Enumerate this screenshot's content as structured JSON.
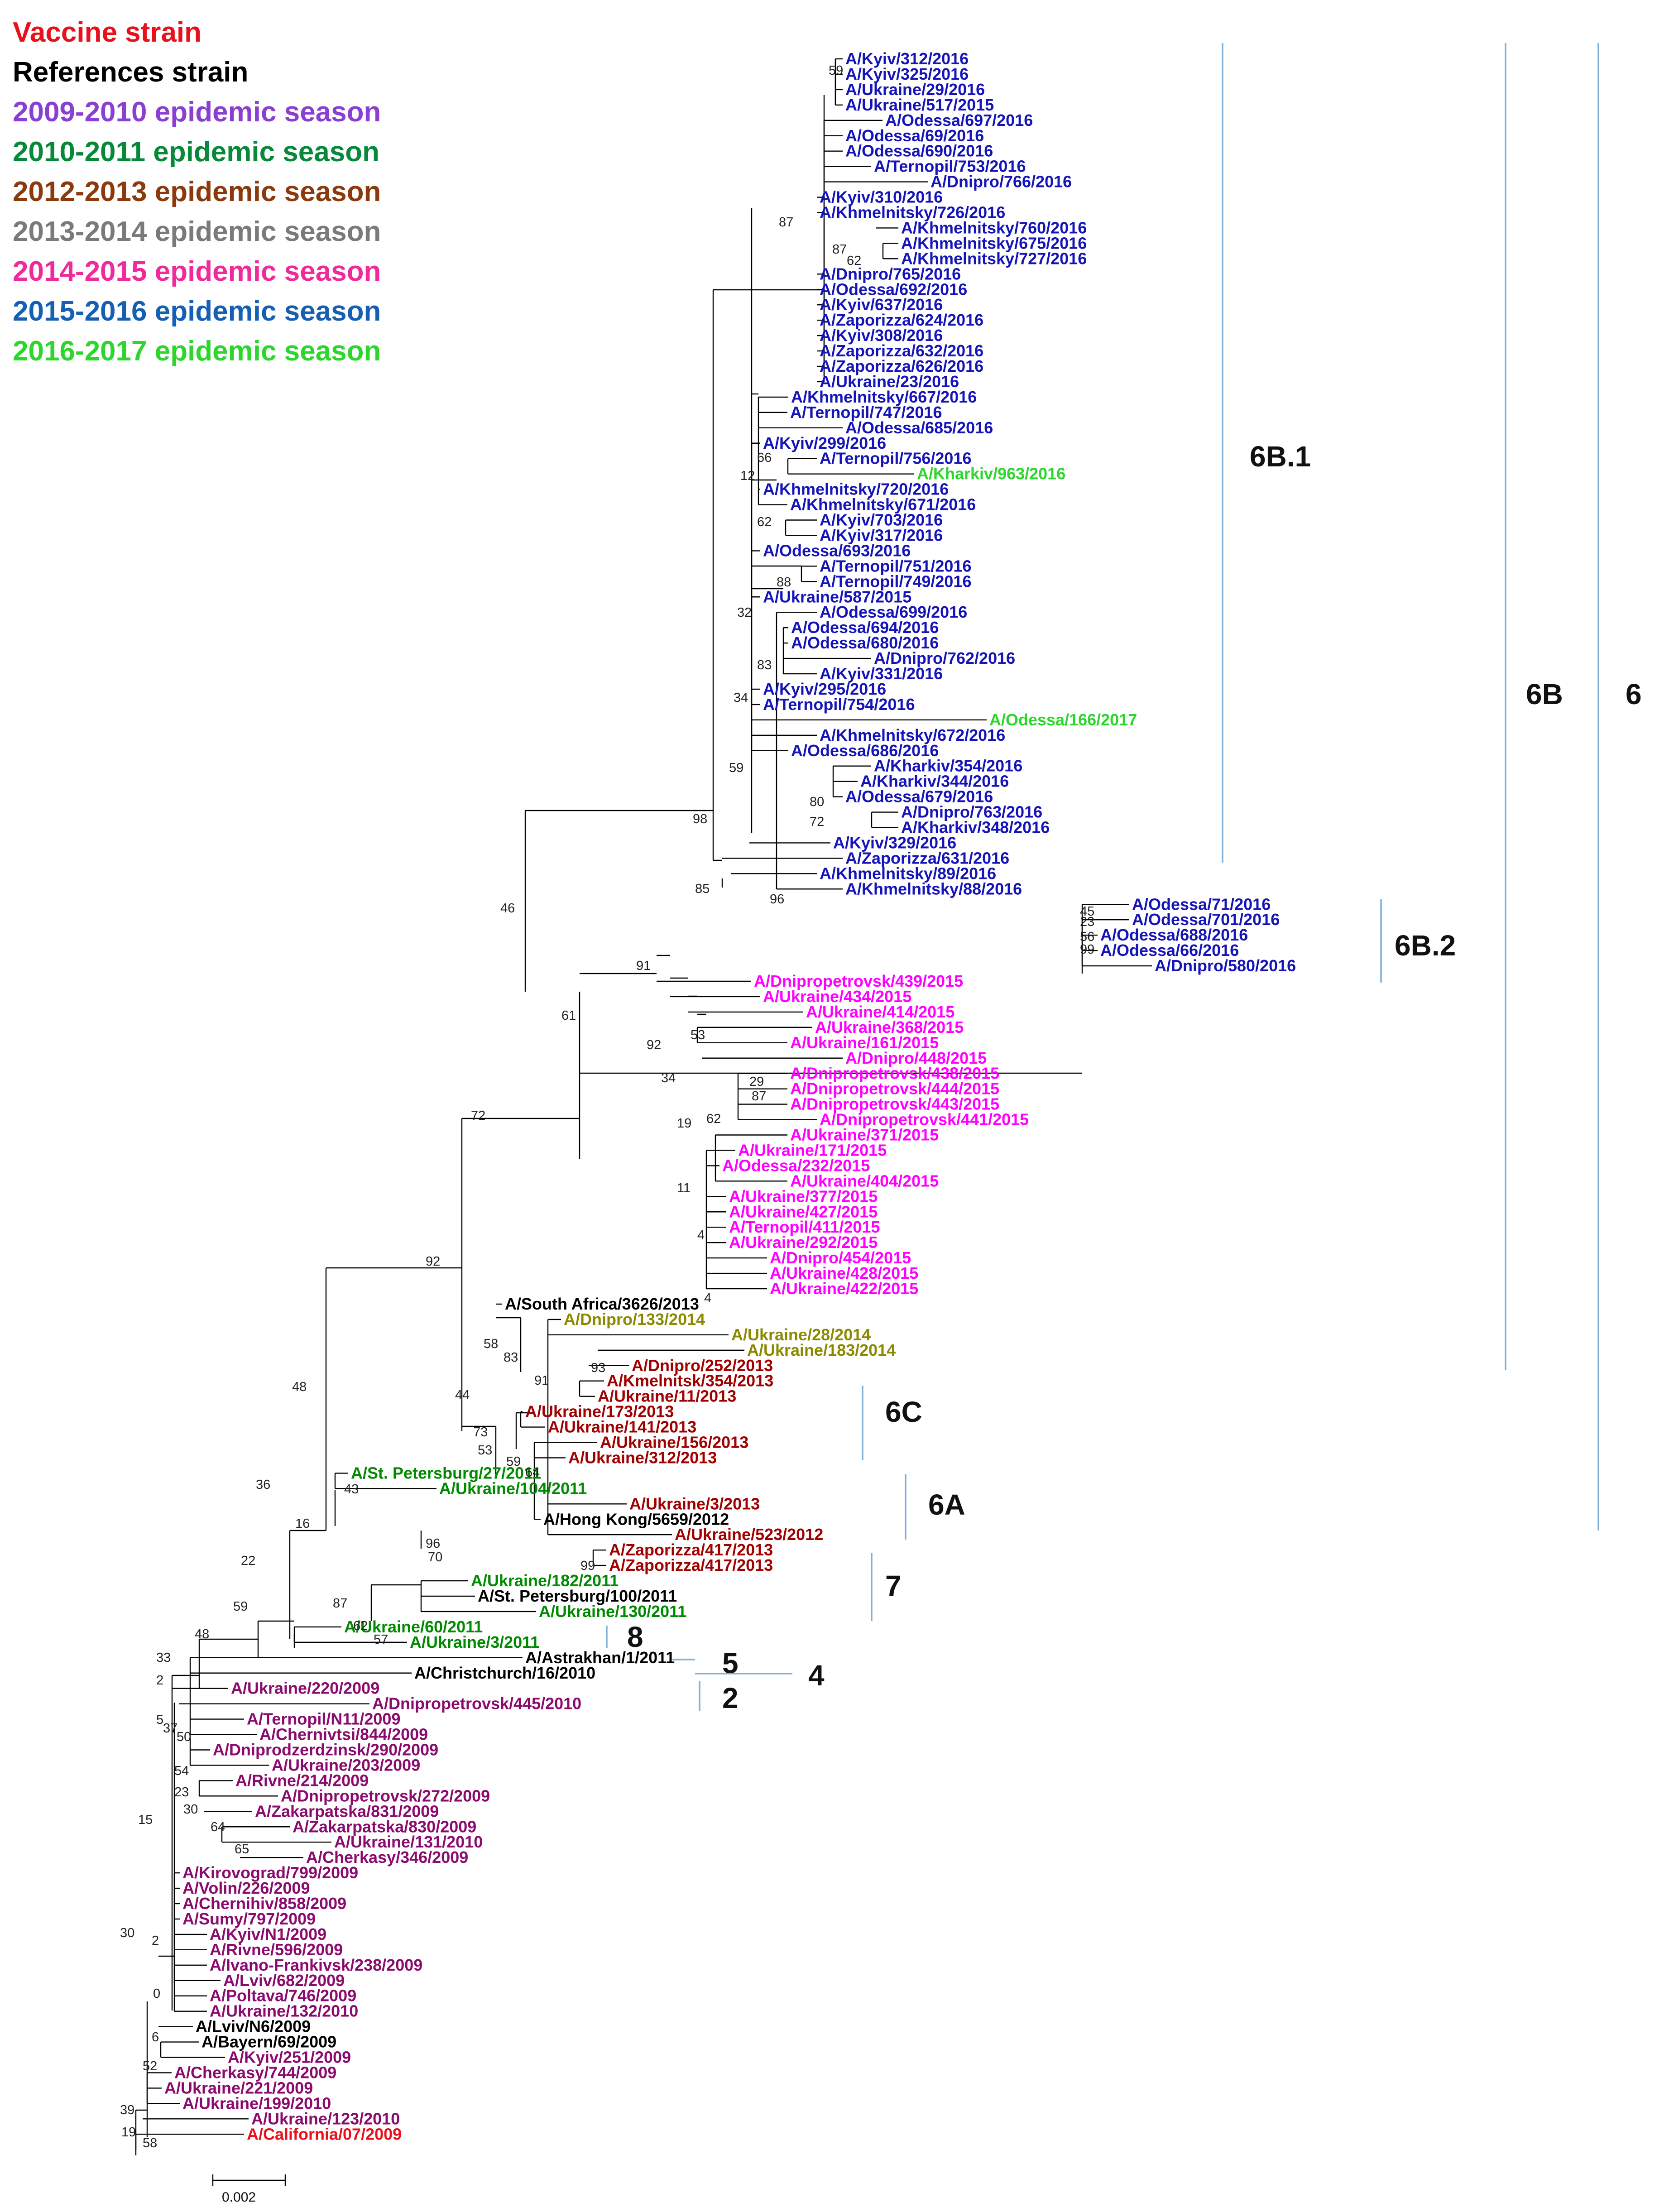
{
  "colors": {
    "vaccine": "#e8101a",
    "reference": "#000000",
    "s0910": "#8a3fd1",
    "s1011": "#07893a",
    "s1213": "#8b3a0e",
    "s1314": "#7a7a7a",
    "s1415": "#ee2a9c",
    "s1516": "#1660b4",
    "s1617": "#2cd62c",
    "g2010": "#1414b8",
    "g2015": "#ff00ff",
    "g2014": "#8a8a00",
    "g2013": "#a00000",
    "g2011": "#008a00",
    "g2009": "#8b0a6e",
    "bar": "#7fb0d8"
  },
  "legend": [
    {
      "text": "Vaccine strain",
      "color": "vaccine"
    },
    {
      "text": "References strain",
      "color": "reference"
    },
    {
      "text": "2009-2010 epidemic season",
      "color": "s0910"
    },
    {
      "text": "2010-2011 epidemic season",
      "color": "s1011"
    },
    {
      "text": "2012-2013 epidemic season",
      "color": "s1213"
    },
    {
      "text": "2013-2014 epidemic season",
      "color": "s1314"
    },
    {
      "text": "2014-2015 epidemic season",
      "color": "s1415"
    },
    {
      "text": "2015-2016 epidemic season",
      "color": "s1516"
    },
    {
      "text": "2016-2017 epidemic season",
      "color": "s1617"
    }
  ],
  "leaves": [
    {
      "label": "A/Kyiv/312/2016",
      "group": "g2010"
    },
    {
      "label": "A/Kyiv/325/2016",
      "group": "g2010"
    },
    {
      "label": "A/Ukraine/29/2016",
      "group": "g2010"
    },
    {
      "label": "A/Ukraine/517/2015",
      "group": "g2010"
    },
    {
      "label": "A/Odessa/697/2016",
      "group": "g2010"
    },
    {
      "label": "A/Odessa/69/2016",
      "group": "g2010"
    },
    {
      "label": "A/Odessa/690/2016",
      "group": "g2010"
    },
    {
      "label": "A/Ternopil/753/2016",
      "group": "g2010"
    },
    {
      "label": "A/Dnipro/766/2016",
      "group": "g2010"
    },
    {
      "label": "A/Kyiv/310/2016",
      "group": "g2010"
    },
    {
      "label": "A/Khmelnitsky/726/2016",
      "group": "g2010"
    },
    {
      "label": "A/Khmelnitsky/760/2016",
      "group": "g2010"
    },
    {
      "label": "A/Khmelnitsky/675/2016",
      "group": "g2010"
    },
    {
      "label": "A/Khmelnitsky/727/2016",
      "group": "g2010"
    },
    {
      "label": "A/Dnipro/765/2016",
      "group": "g2010"
    },
    {
      "label": "A/Odessa/692/2016",
      "group": "g2010"
    },
    {
      "label": "A/Kyiv/637/2016",
      "group": "g2010"
    },
    {
      "label": "A/Zaporizza/624/2016",
      "group": "g2010"
    },
    {
      "label": "A/Kyiv/308/2016",
      "group": "g2010"
    },
    {
      "label": "A/Zaporizza/632/2016",
      "group": "g2010"
    },
    {
      "label": "A/Zaporizza/626/2016",
      "group": "g2010"
    },
    {
      "label": "A/Ukraine/23/2016",
      "group": "g2010"
    },
    {
      "label": "A/Khmelnitsky/667/2016",
      "group": "g2010"
    },
    {
      "label": "A/Ternopil/747/2016",
      "group": "g2010"
    },
    {
      "label": "A/Odessa/685/2016",
      "group": "g2010"
    },
    {
      "label": "A/Kyiv/299/2016",
      "group": "g2010"
    },
    {
      "label": "A/Ternopil/756/2016",
      "group": "g2010"
    },
    {
      "label": "A/Kharkiv/963/2016",
      "group": "s1617"
    },
    {
      "label": "A/Khmelnitsky/720/2016",
      "group": "g2010"
    },
    {
      "label": "A/Khmelnitsky/671/2016",
      "group": "g2010"
    },
    {
      "label": "A/Kyiv/703/2016",
      "group": "g2010"
    },
    {
      "label": "A/Kyiv/317/2016",
      "group": "g2010"
    },
    {
      "label": "A/Odessa/693/2016",
      "group": "g2010"
    },
    {
      "label": "A/Ternopil/751/2016",
      "group": "g2010"
    },
    {
      "label": "A/Ternopil/749/2016",
      "group": "g2010"
    },
    {
      "label": "A/Ukraine/587/2015",
      "group": "g2010"
    },
    {
      "label": "A/Odessa/699/2016",
      "group": "g2010"
    },
    {
      "label": "A/Odessa/694/2016",
      "group": "g2010"
    },
    {
      "label": "A/Odessa/680/2016",
      "group": "g2010"
    },
    {
      "label": "A/Dnipro/762/2016",
      "group": "g2010"
    },
    {
      "label": "A/Kyiv/331/2016",
      "group": "g2010"
    },
    {
      "label": "A/Kyiv/295/2016",
      "group": "g2010"
    },
    {
      "label": "A/Ternopil/754/2016",
      "group": "g2010"
    },
    {
      "label": "A/Odessa/166/2017",
      "group": "s1617"
    },
    {
      "label": "A/Khmelnitsky/672/2016",
      "group": "g2010"
    },
    {
      "label": "A/Odessa/686/2016",
      "group": "g2010"
    },
    {
      "label": "A/Kharkiv/354/2016",
      "group": "g2010"
    },
    {
      "label": "A/Kharkiv/344/2016",
      "group": "g2010"
    },
    {
      "label": "A/Odessa/679/2016",
      "group": "g2010"
    },
    {
      "label": "A/Dnipro/763/2016",
      "group": "g2010"
    },
    {
      "label": "A/Kharkiv/348/2016",
      "group": "g2010"
    },
    {
      "label": "A/Kyiv/329/2016",
      "group": "g2010"
    },
    {
      "label": "A/Zaporizza/631/2016",
      "group": "g2010"
    },
    {
      "label": "A/Khmelnitsky/89/2016",
      "group": "g2010"
    },
    {
      "label": "A/Khmelnitsky/88/2016",
      "group": "g2010"
    },
    {
      "label": "A/Odessa/71/2016",
      "group": "g2010"
    },
    {
      "label": "A/Odessa/701/2016",
      "group": "g2010"
    },
    {
      "label": "A/Odessa/688/2016",
      "group": "g2010"
    },
    {
      "label": "A/Odessa/66/2016",
      "group": "g2010"
    },
    {
      "label": "A/Dnipro/580/2016",
      "group": "g2010"
    },
    {
      "label": "A/Dnipropetrovsk/439/2015",
      "group": "g2015"
    },
    {
      "label": "A/Ukraine/434/2015",
      "group": "g2015"
    },
    {
      "label": "A/Ukraine/414/2015",
      "group": "g2015"
    },
    {
      "label": "A/Ukraine/368/2015",
      "group": "g2015"
    },
    {
      "label": "A/Ukraine/161/2015",
      "group": "g2015"
    },
    {
      "label": "A/Dnipro/448/2015",
      "group": "g2015"
    },
    {
      "label": "A/Dnipropetrovsk/438/2015",
      "group": "g2015"
    },
    {
      "label": "A/Dnipropetrovsk/444/2015",
      "group": "g2015"
    },
    {
      "label": "A/Dnipropetrovsk/443/2015",
      "group": "g2015"
    },
    {
      "label": "A/Dnipropetrovsk/441/2015",
      "group": "g2015"
    },
    {
      "label": "A/Ukraine/371/2015",
      "group": "g2015"
    },
    {
      "label": "A/Ukraine/171/2015",
      "group": "g2015"
    },
    {
      "label": "A/Odessa/232/2015",
      "group": "g2015"
    },
    {
      "label": "A/Ukraine/404/2015",
      "group": "g2015"
    },
    {
      "label": "A/Ukraine/377/2015",
      "group": "g2015"
    },
    {
      "label": "A/Ukraine/427/2015",
      "group": "g2015"
    },
    {
      "label": "A/Ternopil/411/2015",
      "group": "g2015"
    },
    {
      "label": "A/Ukraine/292/2015",
      "group": "g2015"
    },
    {
      "label": "A/Dnipro/454/2015",
      "group": "g2015"
    },
    {
      "label": "A/Ukraine/428/2015",
      "group": "g2015"
    },
    {
      "label": "A/Ukraine/422/2015",
      "group": "g2015"
    },
    {
      "label": "A/South Africa/3626/2013",
      "group": "reference"
    },
    {
      "label": "A/Dnipro/133/2014",
      "group": "g2014"
    },
    {
      "label": "A/Ukraine/28/2014",
      "group": "g2014"
    },
    {
      "label": "A/Ukraine/183/2014",
      "group": "g2014"
    },
    {
      "label": "A/Dnipro/252/2013",
      "group": "g2013"
    },
    {
      "label": "A/Kmelnitsk/354/2013",
      "group": "g2013"
    },
    {
      "label": "A/Ukraine/11/2013",
      "group": "g2013"
    },
    {
      "label": "A/Ukraine/173/2013",
      "group": "g2013"
    },
    {
      "label": "A/Ukraine/141/2013",
      "group": "g2013"
    },
    {
      "label": "A/Ukraine/156/2013",
      "group": "g2013"
    },
    {
      "label": "A/Ukraine/312/2013",
      "group": "g2013"
    },
    {
      "label": "A/St. Petersburg/27/2011",
      "group": "g2011"
    },
    {
      "label": "A/Ukraine/104/2011",
      "group": "g2011"
    },
    {
      "label": "A/Ukraine/3/2013",
      "group": "g2013"
    },
    {
      "label": "A/Hong Kong/5659/2012",
      "group": "reference"
    },
    {
      "label": "A/Ukraine/523/2012",
      "group": "g2013"
    },
    {
      "label": "A/Zaporizza/417/2013",
      "group": "g2013"
    },
    {
      "label": "A/Zaporizza/417/2013",
      "group": "g2013"
    },
    {
      "label": "A/Ukraine/182/2011",
      "group": "g2011"
    },
    {
      "label": "A/St. Petersburg/100/2011",
      "group": "reference"
    },
    {
      "label": "A/Ukraine/130/2011",
      "group": "g2011"
    },
    {
      "label": "A/Ukraine/60/2011",
      "group": "g2011"
    },
    {
      "label": "A/Ukraine/3/2011",
      "group": "g2011"
    },
    {
      "label": "A/Astrakhan/1/2011",
      "group": "reference"
    },
    {
      "label": "A/Christchurch/16/2010",
      "group": "reference"
    },
    {
      "label": "A/Ukraine/220/2009",
      "group": "g2009"
    },
    {
      "label": "A/Dnipropetrovsk/445/2010",
      "group": "g2009"
    },
    {
      "label": "A/Ternopil/N11/2009",
      "group": "g2009"
    },
    {
      "label": "A/Chernivtsi/844/2009",
      "group": "g2009"
    },
    {
      "label": "A/Dniprodzerdzinsk/290/2009",
      "group": "g2009"
    },
    {
      "label": "A/Ukraine/203/2009",
      "group": "g2009"
    },
    {
      "label": "A/Rivne/214/2009",
      "group": "g2009"
    },
    {
      "label": "A/Dnipropetrovsk/272/2009",
      "group": "g2009"
    },
    {
      "label": "A/Zakarpatska/831/2009",
      "group": "g2009"
    },
    {
      "label": "A/Zakarpatska/830/2009",
      "group": "g2009"
    },
    {
      "label": "A/Ukraine/131/2010",
      "group": "g2009"
    },
    {
      "label": "A/Cherkasy/346/2009",
      "group": "g2009"
    },
    {
      "label": "A/Kirovograd/799/2009",
      "group": "g2009"
    },
    {
      "label": "A/Volin/226/2009",
      "group": "g2009"
    },
    {
      "label": "A/Chernihiv/858/2009",
      "group": "g2009"
    },
    {
      "label": "A/Sumy/797/2009",
      "group": "g2009"
    },
    {
      "label": "A/Kyiv/N1/2009",
      "group": "g2009"
    },
    {
      "label": "A/Rivne/596/2009",
      "group": "g2009"
    },
    {
      "label": "A/Ivano-Frankivsk/238/2009",
      "group": "g2009"
    },
    {
      "label": "A/Lviv/682/2009",
      "group": "g2009"
    },
    {
      "label": "A/Poltava/746/2009",
      "group": "g2009"
    },
    {
      "label": "A/Ukraine/132/2010",
      "group": "g2009"
    },
    {
      "label": "A/Lviv/N6/2009",
      "group": "reference"
    },
    {
      "label": "A/Bayern/69/2009",
      "group": "reference"
    },
    {
      "label": "A/Kyiv/251/2009",
      "group": "g2009"
    },
    {
      "label": "A/Cherkasy/744/2009",
      "group": "g2009"
    },
    {
      "label": "A/Ukraine/221/2009",
      "group": "g2009"
    },
    {
      "label": "A/Ukraine/199/2010",
      "group": "g2009"
    },
    {
      "label": "A/Ukraine/123/2010",
      "group": "g2009"
    },
    {
      "label": "A/California/07/2009",
      "group": "vaccine"
    }
  ],
  "bootstrap": [
    {
      "text": "59"
    },
    {
      "text": "87"
    },
    {
      "text": "87"
    },
    {
      "text": "62"
    },
    {
      "text": "66"
    },
    {
      "text": "12"
    },
    {
      "text": "62"
    },
    {
      "text": "88"
    },
    {
      "text": "32"
    },
    {
      "text": "83"
    },
    {
      "text": "34"
    },
    {
      "text": "59"
    },
    {
      "text": "80"
    },
    {
      "text": "72"
    },
    {
      "text": "98"
    },
    {
      "text": "85"
    },
    {
      "text": "96"
    },
    {
      "text": "46"
    },
    {
      "text": "45"
    },
    {
      "text": "23"
    },
    {
      "text": "56"
    },
    {
      "text": "99"
    },
    {
      "text": "91"
    },
    {
      "text": "61"
    },
    {
      "text": "53"
    },
    {
      "text": "92"
    },
    {
      "text": "34"
    },
    {
      "text": "29"
    },
    {
      "text": "87"
    },
    {
      "text": "19"
    },
    {
      "text": "62"
    },
    {
      "text": "11"
    },
    {
      "text": "4"
    },
    {
      "text": "4"
    },
    {
      "text": "72"
    },
    {
      "text": "92"
    },
    {
      "text": "58"
    },
    {
      "text": "83"
    },
    {
      "text": "93"
    },
    {
      "text": "91"
    },
    {
      "text": "44"
    },
    {
      "text": "73"
    },
    {
      "text": "53"
    },
    {
      "text": "59"
    },
    {
      "text": "64"
    },
    {
      "text": "48"
    },
    {
      "text": "43"
    },
    {
      "text": "36"
    },
    {
      "text": "16"
    },
    {
      "text": "96"
    },
    {
      "text": "70"
    },
    {
      "text": "22"
    },
    {
      "text": "99"
    },
    {
      "text": "87"
    },
    {
      "text": "62"
    },
    {
      "text": "57"
    },
    {
      "text": "59"
    },
    {
      "text": "48"
    },
    {
      "text": "33"
    },
    {
      "text": "2"
    },
    {
      "text": "5"
    },
    {
      "text": "37"
    },
    {
      "text": "50"
    },
    {
      "text": "54"
    },
    {
      "text": "23"
    },
    {
      "text": "30"
    },
    {
      "text": "64"
    },
    {
      "text": "65"
    },
    {
      "text": "15"
    },
    {
      "text": "30"
    },
    {
      "text": "2"
    },
    {
      "text": "0"
    },
    {
      "text": "6"
    },
    {
      "text": "52"
    },
    {
      "text": "39"
    },
    {
      "text": "19"
    },
    {
      "text": "58"
    }
  ],
  "clades": [
    {
      "label": "6B.1"
    },
    {
      "label": "6B.2"
    },
    {
      "label": "6B"
    },
    {
      "label": "6"
    },
    {
      "label": "6C"
    },
    {
      "label": "6A"
    },
    {
      "label": "7"
    },
    {
      "label": "8"
    },
    {
      "label": "5"
    },
    {
      "label": "4"
    },
    {
      "label": "2"
    }
  ],
  "scale": {
    "label": "0.002"
  }
}
